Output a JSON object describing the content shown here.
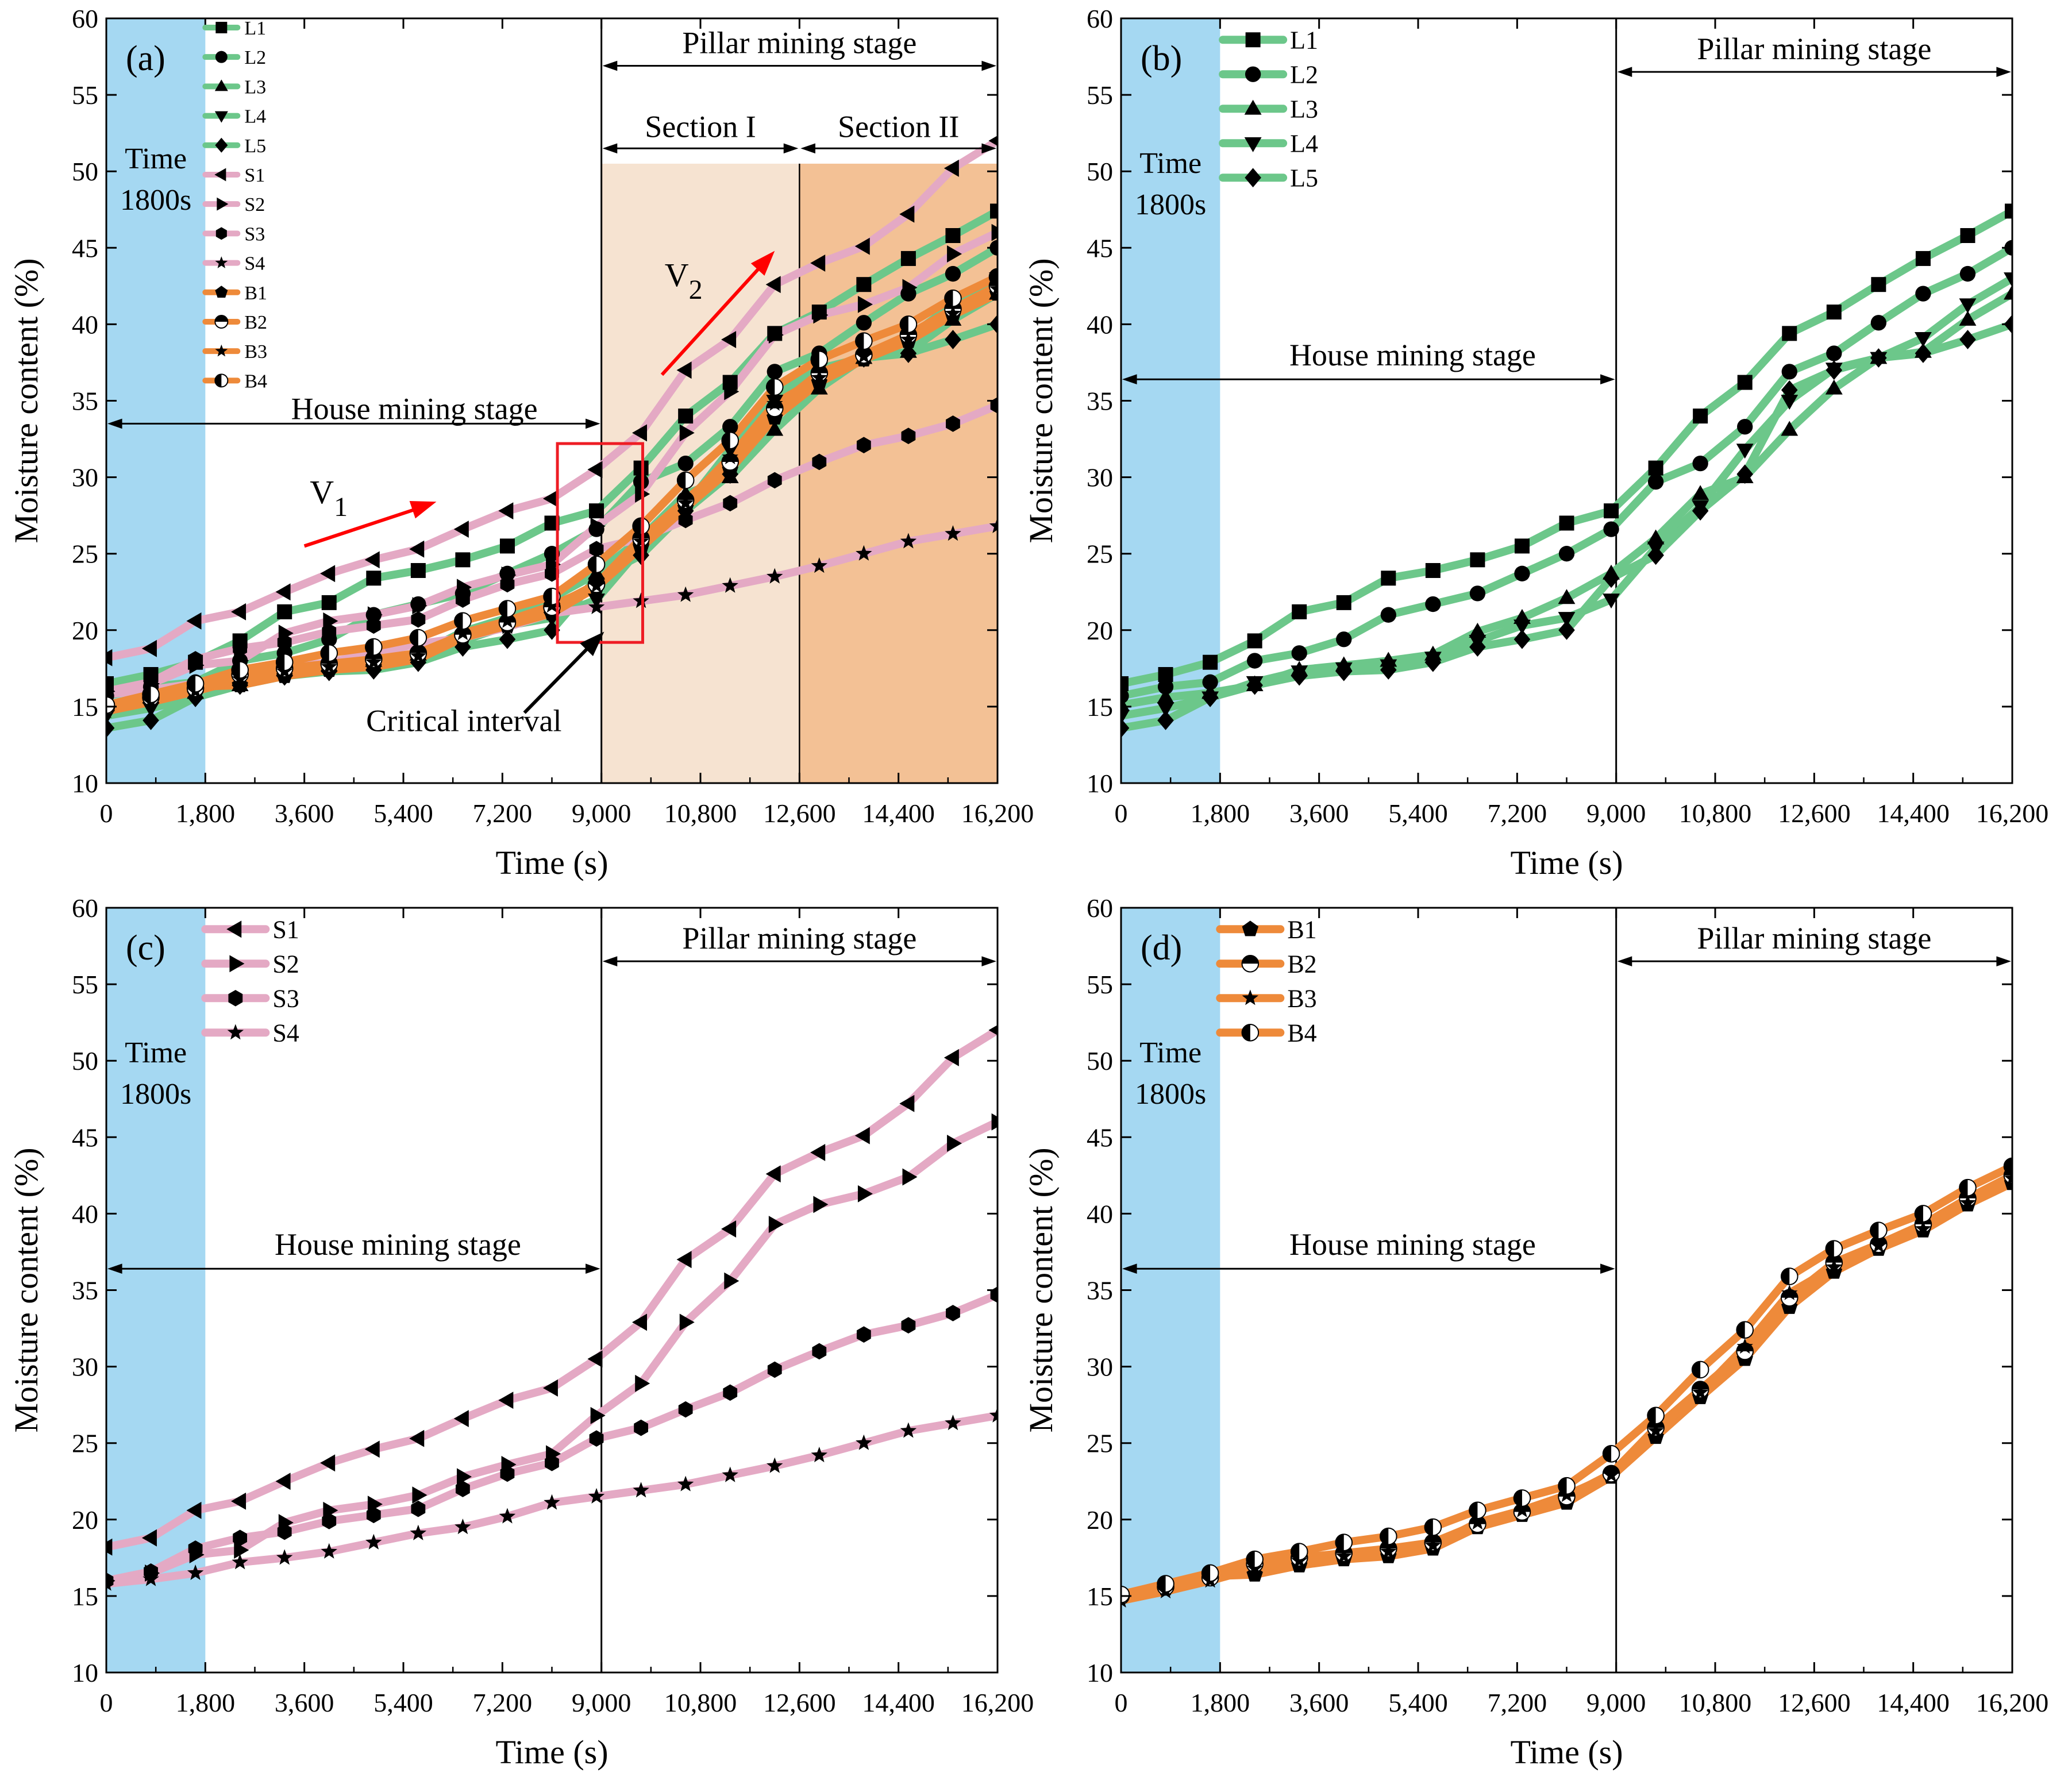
{
  "colors": {
    "L": "#6cc78a",
    "S": "#e4a9c4",
    "B": "#ee8a3a",
    "time_band": "#a5d8f2",
    "section1": "#f6e3d1",
    "section2": "#f3c195",
    "arrow_red": "#ff0000",
    "critical_box": "#ee1c24"
  },
  "chart_data": [
    {
      "id": "a",
      "type": "line",
      "panel_label": "(a)",
      "xlabel": "Time (s)",
      "ylabel": "Moisture content (%)",
      "xlim": [
        0,
        16200
      ],
      "ylim": [
        10,
        60
      ],
      "x_ticks": [
        0,
        1800,
        3600,
        5400,
        7200,
        9000,
        10800,
        12600,
        14400,
        16200
      ],
      "x_tick_labels": [
        "0",
        "1,800",
        "3,600",
        "5,400",
        "7,200",
        "9,000",
        "10,800",
        "12,600",
        "14,400",
        "16,200"
      ],
      "y_ticks": [
        10,
        15,
        20,
        25,
        30,
        35,
        40,
        45,
        50,
        55,
        60
      ],
      "y_tick_labels": [
        "10",
        "15",
        "20",
        "25",
        "30",
        "35",
        "40",
        "45",
        "50",
        "55",
        "60"
      ],
      "time_band": {
        "label_lines": [
          "Time",
          "1800s"
        ],
        "x_range": [
          0,
          1800
        ]
      },
      "stage_divider_x": 9000,
      "house_stage_label": "House mining stage",
      "pillar_stage_label": "Pillar mining stage",
      "sections": [
        {
          "label": "Section I",
          "x_range": [
            9000,
            12600
          ]
        },
        {
          "label": "Section II",
          "x_range": [
            12600,
            16200
          ]
        }
      ],
      "annotations": {
        "v1_main": "V",
        "v1_sub": "1",
        "v2_main": "V",
        "v2_sub": "2",
        "critical": "Critical interval"
      },
      "series": [
        {
          "name": "L1",
          "group": "L",
          "marker": "square",
          "values": [
            16.5,
            17.1,
            17.9,
            19.3,
            21.2,
            21.8,
            23.4,
            23.9,
            24.6,
            25.5,
            27.0,
            27.8,
            30.6,
            34.0,
            36.2,
            39.4,
            40.8,
            42.6,
            44.3,
            45.8,
            47.4
          ]
        },
        {
          "name": "L2",
          "group": "L",
          "marker": "circle",
          "values": [
            15.7,
            16.3,
            16.6,
            18.0,
            18.5,
            19.4,
            21.0,
            21.7,
            22.4,
            23.7,
            25.0,
            26.6,
            29.7,
            30.9,
            33.3,
            36.9,
            38.1,
            40.1,
            42.0,
            43.3,
            45.0
          ]
        },
        {
          "name": "L3",
          "group": "L",
          "marker": "triangle-up",
          "values": [
            15.1,
            15.6,
            15.9,
            16.4,
            17.4,
            17.7,
            18.0,
            18.4,
            19.9,
            20.8,
            22.1,
            23.7,
            26.0,
            28.9,
            30.0,
            33.1,
            35.8,
            37.8,
            38.2,
            40.3,
            42.0
          ]
        },
        {
          "name": "L4",
          "group": "L",
          "marker": "triangle-down",
          "values": [
            14.4,
            14.9,
            15.6,
            16.6,
            17.3,
            17.5,
            17.7,
            18.2,
            19.3,
            20.3,
            20.8,
            22.0,
            25.4,
            28.1,
            31.8,
            35.0,
            37.1,
            37.8,
            39.1,
            41.3,
            43.0
          ]
        },
        {
          "name": "L5",
          "group": "L",
          "marker": "diamond",
          "values": [
            13.6,
            14.1,
            15.6,
            16.4,
            17.0,
            17.3,
            17.4,
            17.9,
            18.9,
            19.4,
            20.0,
            23.4,
            24.9,
            27.8,
            30.2,
            35.7,
            37.0,
            37.8,
            38.1,
            39.0,
            40.0
          ]
        },
        {
          "name": "S1",
          "group": "S",
          "marker": "triangle-left",
          "values": [
            18.2,
            18.8,
            20.6,
            21.2,
            22.5,
            23.7,
            24.6,
            25.3,
            26.6,
            27.8,
            28.6,
            30.5,
            32.9,
            37.0,
            39.0,
            42.6,
            44.0,
            45.1,
            47.2,
            50.2,
            52.0
          ]
        },
        {
          "name": "S2",
          "group": "S",
          "marker": "triangle-right",
          "values": [
            16.0,
            16.5,
            17.7,
            18.0,
            19.8,
            20.6,
            21.0,
            21.6,
            22.8,
            23.6,
            24.3,
            26.8,
            28.9,
            32.9,
            35.6,
            39.3,
            40.6,
            41.3,
            42.4,
            44.6,
            46.0
          ]
        },
        {
          "name": "S3",
          "group": "S",
          "marker": "hexagon",
          "values": [
            16.0,
            16.6,
            18.1,
            18.8,
            19.2,
            19.9,
            20.3,
            20.7,
            22.0,
            23.0,
            23.7,
            25.3,
            26.0,
            27.2,
            28.3,
            29.8,
            31.0,
            32.1,
            32.7,
            33.5,
            34.7
          ]
        },
        {
          "name": "S4",
          "group": "S",
          "marker": "star",
          "values": [
            15.8,
            16.1,
            16.5,
            17.2,
            17.5,
            17.9,
            18.5,
            19.1,
            19.5,
            20.2,
            21.1,
            21.5,
            21.9,
            22.3,
            22.9,
            23.5,
            24.2,
            25.0,
            25.8,
            26.3,
            26.8
          ]
        },
        {
          "name": "B1",
          "group": "B",
          "marker": "pentagon",
          "values": [
            15.1,
            15.5,
            16.3,
            16.4,
            17.0,
            17.4,
            17.6,
            18.1,
            19.5,
            20.3,
            21.1,
            22.8,
            25.4,
            28.0,
            30.5,
            33.9,
            36.2,
            37.7,
            38.9,
            40.6,
            42.0
          ]
        },
        {
          "name": "B2",
          "group": "B",
          "marker": "circle-half-bottom",
          "values": [
            15.0,
            15.6,
            16.2,
            17.1,
            17.5,
            17.8,
            18.1,
            18.5,
            19.7,
            20.5,
            21.5,
            23.0,
            26.0,
            28.5,
            31.0,
            34.5,
            36.8,
            38.0,
            39.3,
            41.0,
            42.5
          ]
        },
        {
          "name": "B3",
          "group": "B",
          "marker": "star",
          "values": [
            14.7,
            15.3,
            16.0,
            16.8,
            17.3,
            17.6,
            17.9,
            18.3,
            19.8,
            20.6,
            21.6,
            22.9,
            25.8,
            28.3,
            31.3,
            34.8,
            36.5,
            37.9,
            39.0,
            40.7,
            42.3
          ]
        },
        {
          "name": "B4",
          "group": "B",
          "marker": "circle-half-right",
          "values": [
            15.1,
            15.8,
            16.5,
            17.4,
            17.9,
            18.5,
            18.9,
            19.5,
            20.6,
            21.4,
            22.2,
            24.3,
            26.8,
            29.8,
            32.4,
            35.9,
            37.7,
            38.9,
            40.0,
            41.7,
            43.1
          ]
        }
      ]
    },
    {
      "id": "b",
      "type": "line",
      "panel_label": "(b)",
      "xlabel": "Time (s)",
      "ylabel": "Moisture content (%)",
      "xlim": [
        0,
        16200
      ],
      "ylim": [
        10,
        60
      ],
      "x_ticks": [
        0,
        1800,
        3600,
        5400,
        7200,
        9000,
        10800,
        12600,
        14400,
        16200
      ],
      "x_tick_labels": [
        "0",
        "1,800",
        "3,600",
        "5,400",
        "7,200",
        "9,000",
        "10,800",
        "12,600",
        "14,400",
        "16,200"
      ],
      "y_ticks": [
        10,
        15,
        20,
        25,
        30,
        35,
        40,
        45,
        50,
        55,
        60
      ],
      "y_tick_labels": [
        "10",
        "15",
        "20",
        "25",
        "30",
        "35",
        "40",
        "45",
        "50",
        "55",
        "60"
      ],
      "time_band": {
        "label_lines": [
          "Time",
          "1800s"
        ],
        "x_range": [
          0,
          1800
        ]
      },
      "stage_divider_x": 9000,
      "house_stage_label": "House mining stage",
      "pillar_stage_label": "Pillar mining stage",
      "series": [
        {
          "name": "L1",
          "group": "L",
          "marker": "square",
          "values": [
            16.5,
            17.1,
            17.9,
            19.3,
            21.2,
            21.8,
            23.4,
            23.9,
            24.6,
            25.5,
            27.0,
            27.8,
            30.6,
            34.0,
            36.2,
            39.4,
            40.8,
            42.6,
            44.3,
            45.8,
            47.4
          ]
        },
        {
          "name": "L2",
          "group": "L",
          "marker": "circle",
          "values": [
            15.7,
            16.3,
            16.6,
            18.0,
            18.5,
            19.4,
            21.0,
            21.7,
            22.4,
            23.7,
            25.0,
            26.6,
            29.7,
            30.9,
            33.3,
            36.9,
            38.1,
            40.1,
            42.0,
            43.3,
            45.0
          ]
        },
        {
          "name": "L3",
          "group": "L",
          "marker": "triangle-up",
          "values": [
            15.1,
            15.6,
            15.9,
            16.4,
            17.4,
            17.7,
            18.0,
            18.4,
            19.9,
            20.8,
            22.1,
            23.7,
            26.0,
            28.9,
            30.0,
            33.1,
            35.8,
            37.8,
            38.2,
            40.3,
            42.0
          ]
        },
        {
          "name": "L4",
          "group": "L",
          "marker": "triangle-down",
          "values": [
            14.4,
            14.9,
            15.6,
            16.6,
            17.3,
            17.5,
            17.7,
            18.2,
            19.3,
            20.3,
            20.8,
            22.0,
            25.4,
            28.1,
            31.8,
            35.0,
            37.1,
            37.8,
            39.1,
            41.3,
            43.0
          ]
        },
        {
          "name": "L5",
          "group": "L",
          "marker": "diamond",
          "values": [
            13.6,
            14.1,
            15.6,
            16.4,
            17.0,
            17.3,
            17.4,
            17.9,
            18.9,
            19.4,
            20.0,
            23.4,
            24.9,
            27.8,
            30.2,
            35.7,
            37.0,
            37.8,
            38.1,
            39.0,
            40.0
          ]
        }
      ]
    },
    {
      "id": "c",
      "type": "line",
      "panel_label": "(c)",
      "xlabel": "Time (s)",
      "ylabel": "Moisture content (%)",
      "xlim": [
        0,
        16200
      ],
      "ylim": [
        10,
        60
      ],
      "x_ticks": [
        0,
        1800,
        3600,
        5400,
        7200,
        9000,
        10800,
        12600,
        14400,
        16200
      ],
      "x_tick_labels": [
        "0",
        "1,800",
        "3,600",
        "5,400",
        "7,200",
        "9,000",
        "10,800",
        "12,600",
        "14,400",
        "16,200"
      ],
      "y_ticks": [
        10,
        15,
        20,
        25,
        30,
        35,
        40,
        45,
        50,
        55,
        60
      ],
      "y_tick_labels": [
        "10",
        "15",
        "20",
        "25",
        "30",
        "35",
        "40",
        "45",
        "50",
        "55",
        "60"
      ],
      "time_band": {
        "label_lines": [
          "Time",
          "1800s"
        ],
        "x_range": [
          0,
          1800
        ]
      },
      "stage_divider_x": 9000,
      "house_stage_label": "House mining stage",
      "pillar_stage_label": "Pillar mining stage",
      "series": [
        {
          "name": "S1",
          "group": "S",
          "marker": "triangle-left",
          "values": [
            18.2,
            18.8,
            20.6,
            21.2,
            22.5,
            23.7,
            24.6,
            25.3,
            26.6,
            27.8,
            28.6,
            30.5,
            32.9,
            37.0,
            39.0,
            42.6,
            44.0,
            45.1,
            47.2,
            50.2,
            52.0
          ]
        },
        {
          "name": "S2",
          "group": "S",
          "marker": "triangle-right",
          "values": [
            16.0,
            16.5,
            17.7,
            18.0,
            19.8,
            20.6,
            21.0,
            21.6,
            22.8,
            23.6,
            24.3,
            26.8,
            28.9,
            32.9,
            35.6,
            39.3,
            40.6,
            41.3,
            42.4,
            44.6,
            46.0
          ]
        },
        {
          "name": "S3",
          "group": "S",
          "marker": "hexagon",
          "values": [
            16.0,
            16.6,
            18.1,
            18.8,
            19.2,
            19.9,
            20.3,
            20.7,
            22.0,
            23.0,
            23.7,
            25.3,
            26.0,
            27.2,
            28.3,
            29.8,
            31.0,
            32.1,
            32.7,
            33.5,
            34.7
          ]
        },
        {
          "name": "S4",
          "group": "S",
          "marker": "star",
          "values": [
            15.8,
            16.1,
            16.5,
            17.2,
            17.5,
            17.9,
            18.5,
            19.1,
            19.5,
            20.2,
            21.1,
            21.5,
            21.9,
            22.3,
            22.9,
            23.5,
            24.2,
            25.0,
            25.8,
            26.3,
            26.8
          ]
        }
      ]
    },
    {
      "id": "d",
      "type": "line",
      "panel_label": "(d)",
      "xlabel": "Time (s)",
      "ylabel": "Moisture content (%)",
      "xlim": [
        0,
        16200
      ],
      "ylim": [
        10,
        60
      ],
      "x_ticks": [
        0,
        1800,
        3600,
        5400,
        7200,
        9000,
        10800,
        12600,
        14400,
        16200
      ],
      "x_tick_labels": [
        "0",
        "1,800",
        "3,600",
        "5,400",
        "7,200",
        "9,000",
        "10,800",
        "12,600",
        "14,400",
        "16,200"
      ],
      "y_ticks": [
        10,
        15,
        20,
        25,
        30,
        35,
        40,
        45,
        50,
        55,
        60
      ],
      "y_tick_labels": [
        "10",
        "15",
        "20",
        "25",
        "30",
        "35",
        "40",
        "45",
        "50",
        "55",
        "60"
      ],
      "time_band": {
        "label_lines": [
          "Time",
          "1800s"
        ],
        "x_range": [
          0,
          1800
        ]
      },
      "stage_divider_x": 9000,
      "house_stage_label": "House mining stage",
      "pillar_stage_label": "Pillar mining stage",
      "series": [
        {
          "name": "B1",
          "group": "B",
          "marker": "pentagon",
          "values": [
            15.1,
            15.5,
            16.3,
            16.4,
            17.0,
            17.4,
            17.6,
            18.1,
            19.5,
            20.3,
            21.1,
            22.8,
            25.4,
            28.0,
            30.5,
            33.9,
            36.2,
            37.7,
            38.9,
            40.6,
            42.0
          ]
        },
        {
          "name": "B2",
          "group": "B",
          "marker": "circle-half-bottom",
          "values": [
            15.0,
            15.6,
            16.2,
            17.1,
            17.5,
            17.8,
            18.1,
            18.5,
            19.7,
            20.5,
            21.5,
            23.0,
            26.0,
            28.5,
            31.0,
            34.5,
            36.8,
            38.0,
            39.3,
            41.0,
            42.5
          ]
        },
        {
          "name": "B3",
          "group": "B",
          "marker": "star",
          "values": [
            14.7,
            15.3,
            16.0,
            16.8,
            17.3,
            17.6,
            17.9,
            18.3,
            19.8,
            20.6,
            21.6,
            22.9,
            25.8,
            28.3,
            31.3,
            34.8,
            36.5,
            37.9,
            39.0,
            40.7,
            42.3
          ]
        },
        {
          "name": "B4",
          "group": "B",
          "marker": "circle-half-right",
          "values": [
            15.1,
            15.8,
            16.5,
            17.4,
            17.9,
            18.5,
            18.9,
            19.5,
            20.6,
            21.4,
            22.2,
            24.3,
            26.8,
            29.8,
            32.4,
            35.9,
            37.7,
            38.9,
            40.0,
            41.7,
            43.1
          ]
        }
      ]
    }
  ]
}
